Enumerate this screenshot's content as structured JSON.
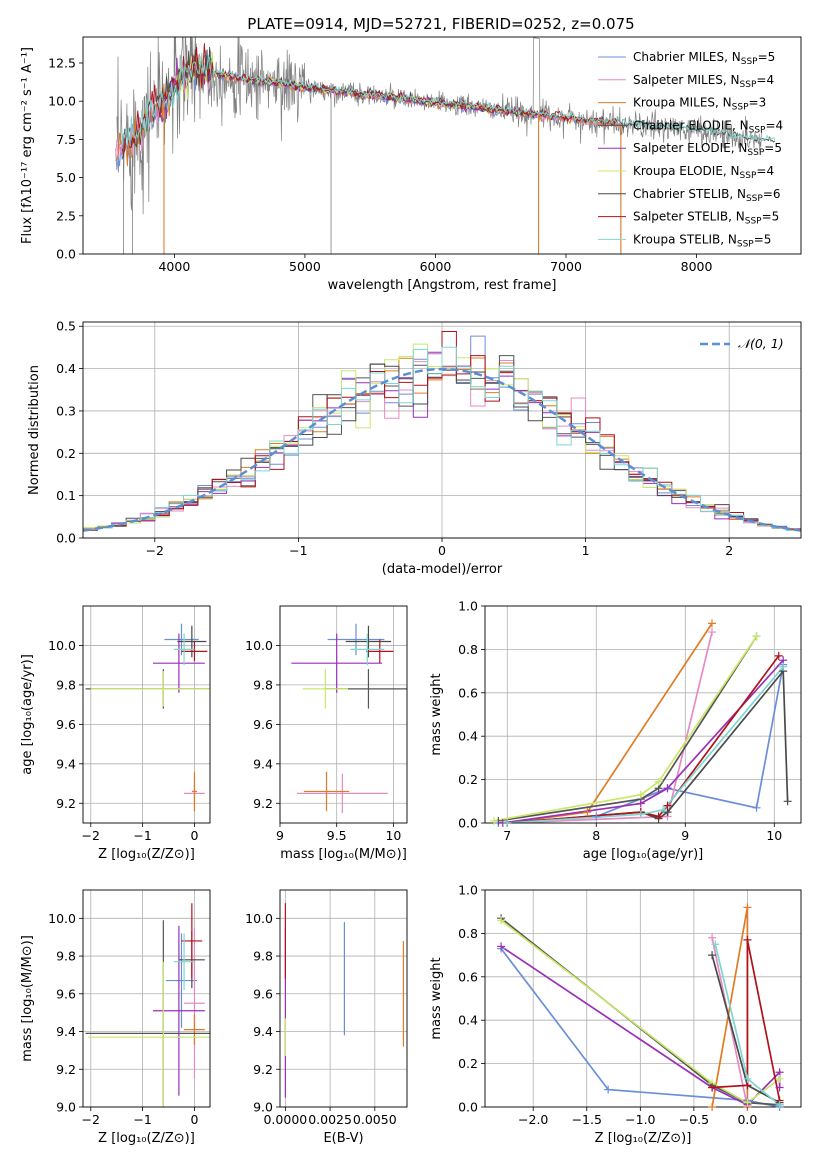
{
  "figure": {
    "title": "PLATE=0914, MJD=52721, FIBERID=0252, z=0.075"
  },
  "colors": {
    "chabrier_miles": "#6a8fd8",
    "salpeter_miles": "#e88bc4",
    "kroupa_miles": "#e07b24",
    "chabrier_elodie": "#555555",
    "salpeter_elodie": "#9a2fb8",
    "kroupa_elodie": "#c8e86a",
    "chabrier_stelib": "#4a4a4a",
    "salpeter_stelib": "#b0121b",
    "kroupa_stelib": "#7fd6d0",
    "data": "#808080",
    "normal": "#5a8fd6",
    "grid": "#b0b0b0"
  },
  "chart_data": [
    {
      "id": "spectrum",
      "type": "line",
      "xlabel": "wavelength [Angstrom, rest frame]",
      "ylabel": "Flux [fλ10⁻¹⁷ erg cm⁻² s⁻¹ A⁻¹]",
      "xlim": [
        3300,
        8800
      ],
      "ylim": [
        0,
        14.2
      ],
      "xticks": [
        4000,
        5000,
        6000,
        7000,
        8000
      ],
      "yticks": [
        0.0,
        2.5,
        5.0,
        7.5,
        10.0,
        12.5
      ],
      "grid": false,
      "legend_position": "top-right",
      "legend": [
        {
          "label": "Chabrier MILES, N",
          "sub": "SSP",
          "suffix": "=5",
          "color_key": "chabrier_miles"
        },
        {
          "label": "Salpeter MILES, N",
          "sub": "SSP",
          "suffix": "=4",
          "color_key": "salpeter_miles"
        },
        {
          "label": "Kroupa MILES, N",
          "sub": "SSP",
          "suffix": "=3",
          "color_key": "kroupa_miles"
        },
        {
          "label": "Chabrier ELODIE, N",
          "sub": "SSP",
          "suffix": "=4",
          "color_key": "chabrier_elodie"
        },
        {
          "label": "Salpeter ELODIE, N",
          "sub": "SSP",
          "suffix": "=5",
          "color_key": "salpeter_elodie"
        },
        {
          "label": "Kroupa ELODIE, N",
          "sub": "SSP",
          "suffix": "=4",
          "color_key": "kroupa_elodie"
        },
        {
          "label": "Chabrier STELIB, N",
          "sub": "SSP",
          "suffix": "=6",
          "color_key": "chabrier_stelib"
        },
        {
          "label": "Salpeter STELIB, N",
          "sub": "SSP",
          "suffix": "=5",
          "color_key": "salpeter_stelib"
        },
        {
          "label": "Kroupa STELIB, N",
          "sub": "SSP",
          "suffix": "=5",
          "color_key": "kroupa_stelib"
        }
      ],
      "continuum": {
        "x": [
          3550,
          3650,
          3750,
          3850,
          3950,
          4050,
          4150,
          4300,
          4500,
          4700,
          4900,
          5100,
          5300,
          5500,
          5700,
          5900,
          6100,
          6300,
          6500,
          6700,
          6900,
          7100,
          7300,
          7500,
          7700,
          7900,
          8100,
          8300,
          8500
        ],
        "y": [
          6.5,
          7.5,
          8.3,
          9.5,
          10.2,
          11.5,
          12.2,
          11.8,
          11.5,
          11.3,
          11.0,
          10.8,
          10.6,
          10.4,
          10.2,
          10.0,
          9.8,
          9.6,
          9.4,
          9.2,
          9.0,
          8.8,
          8.6,
          8.4,
          8.3,
          8.2,
          8.0,
          7.7,
          7.4
        ]
      }
    },
    {
      "id": "residuals",
      "type": "histogram",
      "xlabel": "(data-model)/error",
      "ylabel": "Normed distribution",
      "xlim": [
        -2.5,
        2.5
      ],
      "ylim": [
        0,
        0.51
      ],
      "xticks": [
        -2,
        -1,
        0,
        1,
        2
      ],
      "yticks": [
        0.0,
        0.1,
        0.2,
        0.3,
        0.4,
        0.5
      ],
      "grid": true,
      "legend_position": "top-right",
      "legend_label": "𝒩(0, 1)",
      "bin_width": 0.1,
      "normal": {
        "mean": 0,
        "sigma": 1
      }
    },
    {
      "id": "age_vs_Z",
      "type": "errorbar",
      "xlabel": "Z [log₁₀(Z/Z⊙)]",
      "ylabel": "age  [log₁₀(age/yr)]",
      "xlim": [
        -2.15,
        0.3
      ],
      "ylim": [
        9.1,
        10.2
      ],
      "xticks": [
        -2,
        -1,
        0
      ],
      "yticks": [
        9.2,
        9.4,
        9.6,
        9.8,
        10.0
      ],
      "grid": true,
      "points": [
        {
          "c": "chabrier_miles",
          "x": -0.25,
          "xe": 0.33,
          "y": 10.03,
          "ye": 0.08
        },
        {
          "c": "salpeter_miles",
          "x": 0.0,
          "xe": 0.2,
          "y": 9.25,
          "ye": 0.06
        },
        {
          "c": "kroupa_miles",
          "x": 0.0,
          "xe": 0.05,
          "y": 9.26,
          "ye": 0.1
        },
        {
          "c": "chabrier_elodie",
          "x": -0.6,
          "xe": 1.5,
          "y": 9.78,
          "ye": 0.1
        },
        {
          "c": "salpeter_elodie",
          "x": -0.3,
          "xe": 0.5,
          "y": 9.91,
          "ye": 0.15
        },
        {
          "c": "kroupa_elodie",
          "x": -0.6,
          "xe": 1.4,
          "y": 9.78,
          "ye": 0.09
        },
        {
          "c": "chabrier_stelib",
          "x": -0.05,
          "xe": 0.28,
          "y": 10.02,
          "ye": 0.08
        },
        {
          "c": "salpeter_stelib",
          "x": 0.0,
          "xe": 0.25,
          "y": 9.97,
          "ye": 0.05
        },
        {
          "c": "kroupa_stelib",
          "x": -0.2,
          "xe": 0.2,
          "y": 9.98,
          "ye": 0.08
        }
      ]
    },
    {
      "id": "age_vs_mass",
      "type": "errorbar",
      "xlabel": "mass [log₁₀(M/M⊙)]",
      "ylabel": "",
      "xlim": [
        9.0,
        10.12
      ],
      "ylim": [
        9.1,
        10.2
      ],
      "xticks": [
        9.0,
        9.5,
        10.0
      ],
      "yticks": [
        9.2,
        9.4,
        9.6,
        9.8,
        10.0
      ],
      "grid": true,
      "points": [
        {
          "c": "chabrier_miles",
          "x": 9.67,
          "xe": 0.25,
          "y": 10.03,
          "ye": 0.08
        },
        {
          "c": "salpeter_miles",
          "x": 9.55,
          "xe": 0.4,
          "y": 9.25,
          "ye": 0.1
        },
        {
          "c": "kroupa_miles",
          "x": 9.41,
          "xe": 0.2,
          "y": 9.26,
          "ye": 0.1
        },
        {
          "c": "chabrier_elodie",
          "x": 9.78,
          "xe": 0.38,
          "y": 9.78,
          "ye": 0.1
        },
        {
          "c": "salpeter_elodie",
          "x": 9.5,
          "xe": 0.4,
          "y": 9.91,
          "ye": 0.15
        },
        {
          "c": "kroupa_elodie",
          "x": 9.4,
          "xe": 0.2,
          "y": 9.78,
          "ye": 0.1
        },
        {
          "c": "chabrier_stelib",
          "x": 9.78,
          "xe": 0.2,
          "y": 10.02,
          "ye": 0.08
        },
        {
          "c": "salpeter_stelib",
          "x": 9.88,
          "xe": 0.12,
          "y": 9.97,
          "ye": 0.06
        },
        {
          "c": "kroupa_stelib",
          "x": 9.77,
          "xe": 0.15,
          "y": 9.98,
          "ye": 0.08
        }
      ]
    },
    {
      "id": "weight_vs_age",
      "type": "line",
      "xlabel": "age  [log₁₀(age/yr)]",
      "ylabel": "mass weight",
      "xlim": [
        6.75,
        10.3
      ],
      "ylim": [
        0,
        1.0
      ],
      "xticks": [
        7,
        8,
        9,
        10
      ],
      "yticks": [
        0.0,
        0.2,
        0.4,
        0.6,
        0.8,
        1.0
      ],
      "grid": true,
      "series": [
        {
          "c": "chabrier_miles",
          "x": [
            6.9,
            8.0,
            8.8,
            9.8,
            10.1
          ],
          "y": [
            0.0,
            0.03,
            0.16,
            0.07,
            0.73
          ]
        },
        {
          "c": "salpeter_miles",
          "x": [
            7.0,
            8.8,
            9.3
          ],
          "y": [
            0.0,
            0.03,
            0.88
          ]
        },
        {
          "c": "kroupa_miles",
          "x": [
            7.0,
            7.9,
            9.3
          ],
          "y": [
            0.0,
            0.05,
            0.92
          ]
        },
        {
          "c": "chabrier_elodie",
          "x": [
            6.9,
            8.5,
            8.7,
            9.8
          ],
          "y": [
            0.01,
            0.11,
            0.16,
            0.86
          ]
        },
        {
          "c": "salpeter_elodie",
          "x": [
            6.95,
            8.5,
            8.8,
            10.1
          ],
          "y": [
            0.0,
            0.09,
            0.16,
            0.75
          ]
        },
        {
          "c": "kroupa_elodie",
          "x": [
            6.85,
            8.5,
            8.7,
            9.8
          ],
          "y": [
            0.01,
            0.13,
            0.19,
            0.86
          ]
        },
        {
          "c": "chabrier_stelib",
          "x": [
            7.0,
            8.5,
            8.7,
            8.8,
            10.1,
            10.15
          ],
          "y": [
            0.0,
            0.05,
            0.02,
            0.05,
            0.7,
            0.1
          ]
        },
        {
          "c": "salpeter_stelib",
          "x": [
            7.0,
            8.5,
            8.7,
            8.8,
            10.05
          ],
          "y": [
            0.0,
            0.05,
            0.03,
            0.08,
            0.77
          ]
        },
        {
          "c": "kroupa_stelib",
          "x": [
            7.0,
            8.5,
            8.75,
            10.1
          ],
          "y": [
            0.0,
            0.04,
            0.06,
            0.72
          ]
        }
      ]
    },
    {
      "id": "mass_vs_Z",
      "type": "errorbar",
      "xlabel": "Z [log₁₀(Z/Z⊙)]",
      "ylabel": "mass [log₁₀(M/M⊙)]",
      "xlim": [
        -2.15,
        0.3
      ],
      "ylim": [
        9.0,
        10.15
      ],
      "xticks": [
        -2,
        -1,
        0
      ],
      "yticks": [
        9.0,
        9.2,
        9.4,
        9.6,
        9.8,
        10.0
      ],
      "grid": true,
      "points": [
        {
          "c": "chabrier_miles",
          "x": -0.25,
          "xe": 0.3,
          "y": 9.67,
          "ye": 0.25
        },
        {
          "c": "salpeter_miles",
          "x": 0.0,
          "xe": 0.2,
          "y": 9.55,
          "ye": 0.4
        },
        {
          "c": "kroupa_miles",
          "x": 0.0,
          "xe": 0.2,
          "y": 9.41,
          "ye": 0.08
        },
        {
          "c": "chabrier_elodie",
          "x": -0.6,
          "xe": 1.5,
          "y": 9.39,
          "ye": 0.6
        },
        {
          "c": "salpeter_elodie",
          "x": -0.3,
          "xe": 0.5,
          "y": 9.51,
          "ye": 0.45
        },
        {
          "c": "kroupa_elodie",
          "x": -0.6,
          "xe": 1.45,
          "y": 9.37,
          "ye": 0.4
        },
        {
          "c": "chabrier_stelib",
          "x": -0.05,
          "xe": 0.25,
          "y": 9.78,
          "ye": 0.15
        },
        {
          "c": "salpeter_stelib",
          "x": -0.05,
          "xe": 0.2,
          "y": 9.88,
          "ye": 0.2
        },
        {
          "c": "kroupa_stelib",
          "x": -0.2,
          "xe": 0.2,
          "y": 9.77,
          "ye": 0.15
        }
      ]
    },
    {
      "id": "mass_vs_ebv",
      "type": "errorbar",
      "xlabel": "E(B-V)",
      "ylabel": "",
      "xlim": [
        -0.0003,
        0.0068
      ],
      "ylim": [
        9.0,
        10.15
      ],
      "xticks": [
        0.0,
        0.0025,
        0.005
      ],
      "xticklabels": [
        "0.0000",
        "0.0025",
        "0.0050"
      ],
      "yticks": [
        9.0,
        9.2,
        9.4,
        9.6,
        9.8,
        10.0
      ],
      "grid": true,
      "points": [
        {
          "c": "chabrier_miles",
          "x": 0.0033,
          "xe": 0,
          "y": 9.68,
          "ye": 0.3
        },
        {
          "c": "kroupa_miles",
          "x": 0.0066,
          "xe": 0,
          "y": 9.6,
          "ye": 0.28
        },
        {
          "c": "salpeter_elodie",
          "x": 0.0,
          "xe": 0,
          "y": 9.5,
          "ye": 0.45
        },
        {
          "c": "salpeter_stelib",
          "x": 0.0,
          "xe": 0,
          "y": 9.88,
          "ye": 0.2
        },
        {
          "c": "kroupa_elodie",
          "x": 0.0,
          "xe": 0,
          "y": 9.37,
          "ye": 0.1
        }
      ]
    },
    {
      "id": "weight_vs_Z",
      "type": "line",
      "xlabel": "Z [log₁₀(Z/Z⊙)]",
      "ylabel": "mass weight",
      "xlim": [
        -2.45,
        0.5
      ],
      "ylim": [
        0,
        1.0
      ],
      "xticks": [
        -2.0,
        -1.5,
        -1.0,
        -0.5,
        0.0
      ],
      "xticklabels": [
        "−2.0",
        "−1.5",
        "−1.0",
        "−0.5",
        "0.0"
      ],
      "yticks": [
        0.0,
        0.2,
        0.4,
        0.6,
        0.8,
        1.0
      ],
      "grid": true,
      "series": [
        {
          "c": "chabrier_miles",
          "x": [
            -2.3,
            -1.3,
            0.0,
            0.3
          ],
          "y": [
            0.73,
            0.08,
            0.03,
            0.0
          ]
        },
        {
          "c": "salpeter_miles",
          "x": [
            -0.33,
            0.0
          ],
          "y": [
            0.78,
            0.0
          ]
        },
        {
          "c": "kroupa_miles",
          "x": [
            -0.33,
            0.0,
            0.0
          ],
          "y": [
            0.0,
            0.92,
            0.0
          ]
        },
        {
          "c": "chabrier_elodie",
          "x": [
            -2.3,
            -0.33,
            0.0,
            0.3
          ],
          "y": [
            0.87,
            0.1,
            0.02,
            0.01
          ]
        },
        {
          "c": "salpeter_elodie",
          "x": [
            -2.3,
            -0.33,
            0.0,
            0.3,
            0.3
          ],
          "y": [
            0.74,
            0.09,
            0.01,
            0.16,
            0.09
          ]
        },
        {
          "c": "kroupa_elodie",
          "x": [
            -2.3,
            -0.33,
            0.0,
            0.3
          ],
          "y": [
            0.86,
            0.11,
            0.02,
            0.13
          ]
        },
        {
          "c": "chabrier_stelib",
          "x": [
            -0.33,
            0.0,
            0.3
          ],
          "y": [
            0.7,
            0.1,
            0.02
          ]
        },
        {
          "c": "salpeter_stelib",
          "x": [
            -0.33,
            0.0,
            0.0,
            0.3
          ],
          "y": [
            0.09,
            0.1,
            0.77,
            0.03
          ]
        },
        {
          "c": "kroupa_stelib",
          "x": [
            -0.3,
            0.0,
            0.3
          ],
          "y": [
            0.75,
            0.13,
            0.01
          ]
        }
      ]
    }
  ]
}
